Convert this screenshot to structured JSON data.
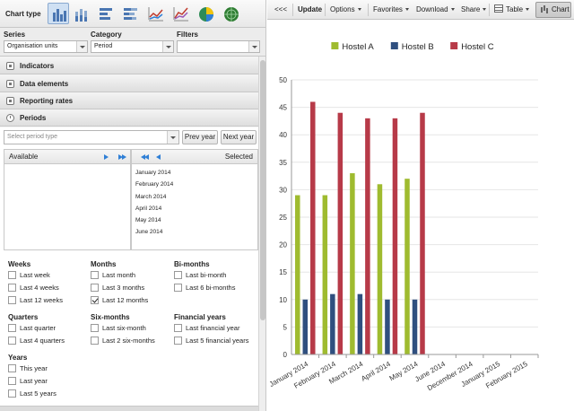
{
  "left": {
    "chart_type_label": "Chart type",
    "chart_types": [
      "column-chart-icon",
      "stacked-column-icon",
      "bar-chart-icon",
      "stacked-bar-icon",
      "line-chart-icon",
      "area-chart-icon",
      "pie-chart-icon",
      "radar-chart-icon"
    ],
    "series": {
      "label": "Series",
      "value": "Organisation units"
    },
    "category": {
      "label": "Category",
      "value": "Period"
    },
    "filters": {
      "label": "Filters",
      "value": ""
    },
    "sections": [
      "Indicators",
      "Data elements",
      "Reporting rates",
      "Periods"
    ],
    "periods": {
      "select_placeholder": "Select period type",
      "prev_year": "Prev year",
      "next_year": "Next year",
      "available_label": "Available",
      "selected_label": "Selected",
      "selected_items": [
        "January 2014",
        "February 2014",
        "March 2014",
        "April 2014",
        "May 2014",
        "June 2014"
      ],
      "groups": [
        {
          "title": "Weeks",
          "items": [
            {
              "label": "Last week",
              "checked": false
            },
            {
              "label": "Last 4 weeks",
              "checked": false
            },
            {
              "label": "Last 12 weeks",
              "checked": false
            }
          ]
        },
        {
          "title": "Months",
          "items": [
            {
              "label": "Last month",
              "checked": false
            },
            {
              "label": "Last 3 months",
              "checked": false
            },
            {
              "label": "Last 12 months",
              "checked": true
            }
          ]
        },
        {
          "title": "Bi-months",
          "items": [
            {
              "label": "Last bi-month",
              "checked": false
            },
            {
              "label": "Last 6 bi-months",
              "checked": false
            }
          ]
        },
        {
          "title": "Quarters",
          "items": [
            {
              "label": "Last quarter",
              "checked": false
            },
            {
              "label": "Last 4 quarters",
              "checked": false
            }
          ]
        },
        {
          "title": "Six-months",
          "items": [
            {
              "label": "Last six-month",
              "checked": false
            },
            {
              "label": "Last 2 six-months",
              "checked": false
            }
          ]
        },
        {
          "title": "Financial years",
          "items": [
            {
              "label": "Last financial year",
              "checked": false
            },
            {
              "label": "Last 5 financial years",
              "checked": false
            }
          ]
        },
        {
          "title": "Years",
          "items": [
            {
              "label": "This year",
              "checked": false
            },
            {
              "label": "Last year",
              "checked": false
            },
            {
              "label": "Last 5 years",
              "checked": false
            }
          ]
        }
      ]
    }
  },
  "toolbar": {
    "collapse": "<<<",
    "update": "Update",
    "options": "Options",
    "favorites": "Favorites",
    "download": "Download",
    "share": "Share",
    "table": "Table",
    "chart": "Chart"
  },
  "chart_data": {
    "type": "bar",
    "categories": [
      "January 2014",
      "February 2014",
      "March 2014",
      "April 2014",
      "May 2014",
      "June 2014",
      "December 2014",
      "January 2015",
      "February 2015"
    ],
    "series": [
      {
        "name": "Hostel A",
        "color": "#9fbb2f",
        "values": [
          29,
          29,
          33,
          31,
          32,
          null,
          null,
          null,
          null
        ]
      },
      {
        "name": "Hostel B",
        "color": "#2f4f7f",
        "values": [
          10,
          11,
          11,
          10,
          10,
          null,
          null,
          null,
          null
        ]
      },
      {
        "name": "Hostel C",
        "color": "#b73a48",
        "values": [
          46,
          44,
          43,
          43,
          44,
          null,
          null,
          null,
          null
        ]
      }
    ],
    "ylim": [
      0,
      50
    ],
    "yticks": [
      0,
      5,
      10,
      15,
      20,
      25,
      30,
      35,
      40,
      45,
      50
    ],
    "legend_position": "top-center",
    "grid": true
  }
}
